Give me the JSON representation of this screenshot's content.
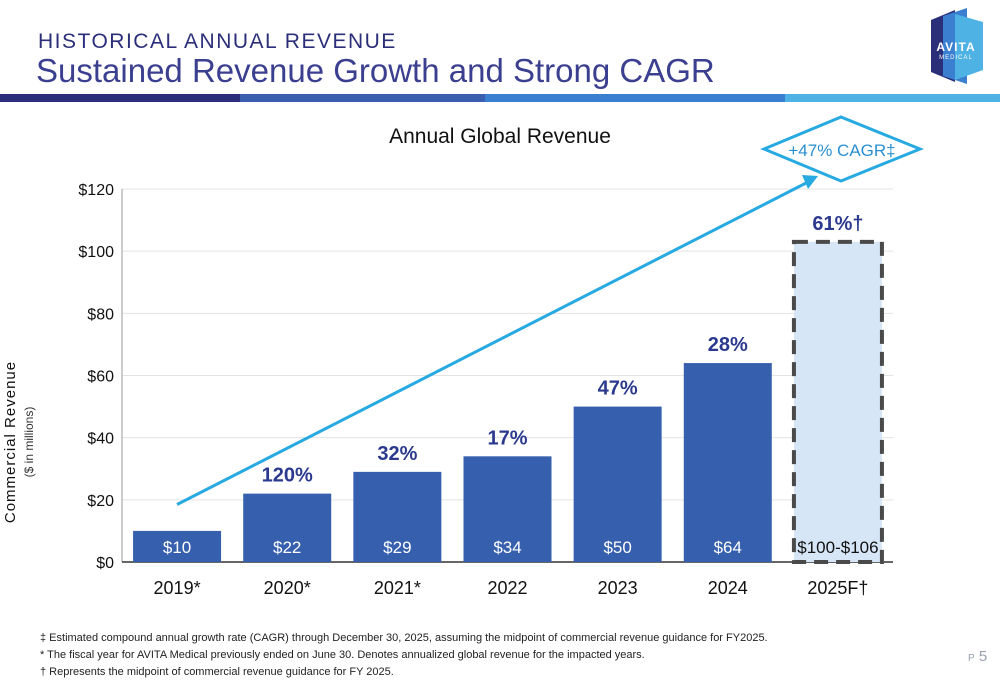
{
  "header": {
    "eyebrow": "HISTORICAL ANNUAL REVENUE",
    "headline": "Sustained Revenue Growth and Strong CAGR"
  },
  "logo": {
    "text": "AVITA",
    "sub": "MEDICAL"
  },
  "colors": {
    "bar": "#365fae",
    "forecast_fill": "#d6e6f6",
    "forecast_border": "#4a4a4a",
    "arrow": "#27a9e1",
    "growth_label": "#2b3a8f",
    "stripe": [
      "#2b2f7a",
      "#3b5fb0",
      "#3a7fd0",
      "#4eb2e4"
    ]
  },
  "chart_data": {
    "type": "bar",
    "title": "Annual Global Revenue",
    "ylabel": "Commercial Revenue",
    "ylabel_sub": "($ in millions)",
    "ylim": [
      0,
      120
    ],
    "yticks": [
      "$0",
      "$20",
      "$40",
      "$60",
      "$80",
      "$100",
      "$120"
    ],
    "ytick_values": [
      0,
      20,
      40,
      60,
      80,
      100,
      120
    ],
    "grid": true,
    "categories": [
      "2019*",
      "2020*",
      "2021*",
      "2022",
      "2023",
      "2024",
      "2025F†"
    ],
    "values": [
      10,
      22,
      29,
      34,
      50,
      64,
      103
    ],
    "value_labels": [
      "$10",
      "$22",
      "$29",
      "$34",
      "$50",
      "$64",
      "$100-$106"
    ],
    "growth_labels": [
      "",
      "120%",
      "32%",
      "17%",
      "47%",
      "28%",
      "61%†"
    ],
    "forecast_index": 6,
    "cagr_label": "+47% CAGR‡"
  },
  "footnotes": [
    "‡ Estimated compound annual growth rate (CAGR) through December 30, 2025, assuming the midpoint of commercial revenue guidance for FY2025.",
    "* The fiscal year for AVITA Medical previously ended on June 30. Denotes annualized global revenue for the impacted years.",
    "† Represents the midpoint of commercial revenue guidance for FY 2025."
  ],
  "page": {
    "prefix": "P",
    "number": "5"
  }
}
